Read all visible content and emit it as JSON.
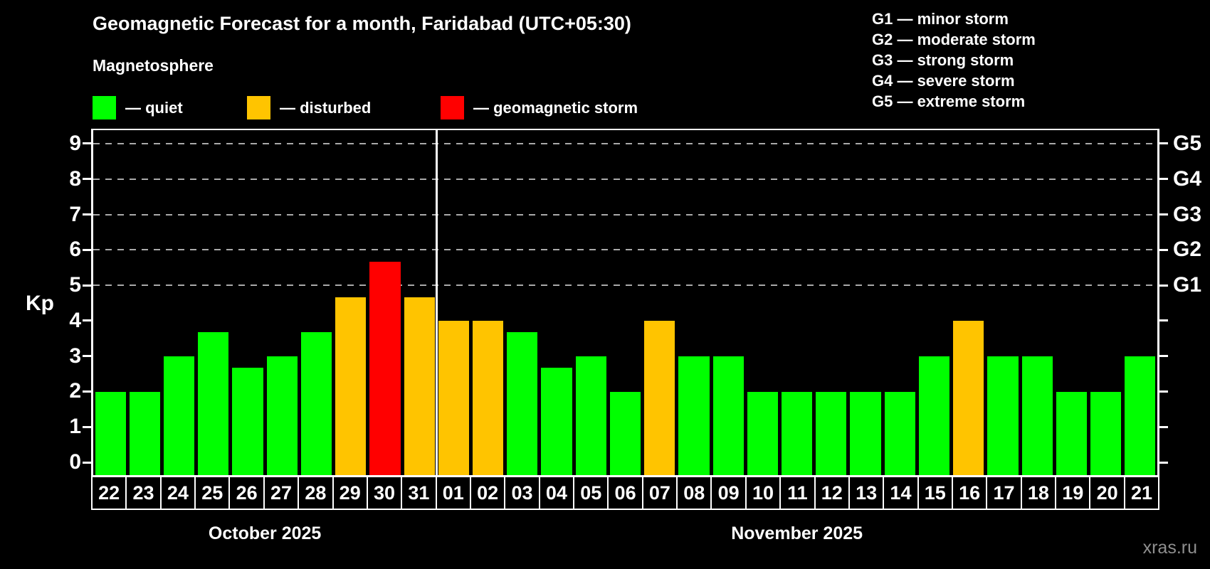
{
  "page": {
    "background": "#000000",
    "watermark": "xras.ru"
  },
  "header": {
    "title": "Geomagnetic Forecast for a month, Faridabad (UTC+05:30)",
    "subtitle": "Magnetosphere"
  },
  "legend": {
    "items": [
      {
        "key": "quiet",
        "swatch_color": "#00ff00",
        "label": "— quiet"
      },
      {
        "key": "disturbed",
        "swatch_color": "#ffc400",
        "label": "— disturbed"
      },
      {
        "key": "storm",
        "swatch_color": "#ff0000",
        "label": "— geomagnetic storm"
      }
    ]
  },
  "storm_scale_legend": {
    "items": [
      "G1 — minor storm",
      "G2 — moderate storm",
      "G3 — strong storm",
      "G4 — severe storm",
      "G5 — extreme storm"
    ]
  },
  "chart_data": {
    "type": "bar",
    "title": "Geomagnetic Forecast for a month, Faridabad (UTC+05:30)",
    "ylabel": "Kp",
    "ylim": [
      -0.36,
      9.38
    ],
    "yticks": [
      0,
      1,
      2,
      3,
      4,
      5,
      6,
      7,
      8,
      9
    ],
    "gridline_values": [
      5,
      6,
      7,
      8,
      9
    ],
    "grid_color": "#aaaaaa",
    "right_axis_labels": [
      {
        "label": "G1",
        "value": 5
      },
      {
        "label": "G2",
        "value": 6
      },
      {
        "label": "G3",
        "value": 7
      },
      {
        "label": "G4",
        "value": 8
      },
      {
        "label": "G5",
        "value": 9
      }
    ],
    "months": [
      {
        "label": "October 2025",
        "start_index": 0,
        "days": 10
      },
      {
        "label": "November 2025",
        "start_index": 10,
        "days": 21
      }
    ],
    "status_colors": {
      "quiet": "#00ff00",
      "disturbed": "#ffc400",
      "storm": "#ff0000"
    },
    "bars": [
      {
        "day": "22",
        "kp": 2.0,
        "status": "quiet"
      },
      {
        "day": "23",
        "kp": 2.0,
        "status": "quiet"
      },
      {
        "day": "24",
        "kp": 3.0,
        "status": "quiet"
      },
      {
        "day": "25",
        "kp": 3.67,
        "status": "quiet"
      },
      {
        "day": "26",
        "kp": 2.67,
        "status": "quiet"
      },
      {
        "day": "27",
        "kp": 3.0,
        "status": "quiet"
      },
      {
        "day": "28",
        "kp": 3.67,
        "status": "quiet"
      },
      {
        "day": "29",
        "kp": 4.67,
        "status": "disturbed"
      },
      {
        "day": "30",
        "kp": 5.67,
        "status": "storm"
      },
      {
        "day": "31",
        "kp": 4.67,
        "status": "disturbed"
      },
      {
        "day": "01",
        "kp": 4.0,
        "status": "disturbed"
      },
      {
        "day": "02",
        "kp": 4.0,
        "status": "disturbed"
      },
      {
        "day": "03",
        "kp": 3.67,
        "status": "quiet"
      },
      {
        "day": "04",
        "kp": 2.67,
        "status": "quiet"
      },
      {
        "day": "05",
        "kp": 3.0,
        "status": "quiet"
      },
      {
        "day": "06",
        "kp": 2.0,
        "status": "quiet"
      },
      {
        "day": "07",
        "kp": 4.0,
        "status": "disturbed"
      },
      {
        "day": "08",
        "kp": 3.0,
        "status": "quiet"
      },
      {
        "day": "09",
        "kp": 3.0,
        "status": "quiet"
      },
      {
        "day": "10",
        "kp": 2.0,
        "status": "quiet"
      },
      {
        "day": "11",
        "kp": 2.0,
        "status": "quiet"
      },
      {
        "day": "12",
        "kp": 2.0,
        "status": "quiet"
      },
      {
        "day": "13",
        "kp": 2.0,
        "status": "quiet"
      },
      {
        "day": "14",
        "kp": 2.0,
        "status": "quiet"
      },
      {
        "day": "15",
        "kp": 3.0,
        "status": "quiet"
      },
      {
        "day": "16",
        "kp": 4.0,
        "status": "disturbed"
      },
      {
        "day": "17",
        "kp": 3.0,
        "status": "quiet"
      },
      {
        "day": "18",
        "kp": 3.0,
        "status": "quiet"
      },
      {
        "day": "19",
        "kp": 2.0,
        "status": "quiet"
      },
      {
        "day": "20",
        "kp": 2.0,
        "status": "quiet"
      },
      {
        "day": "21",
        "kp": 3.0,
        "status": "quiet"
      }
    ]
  }
}
